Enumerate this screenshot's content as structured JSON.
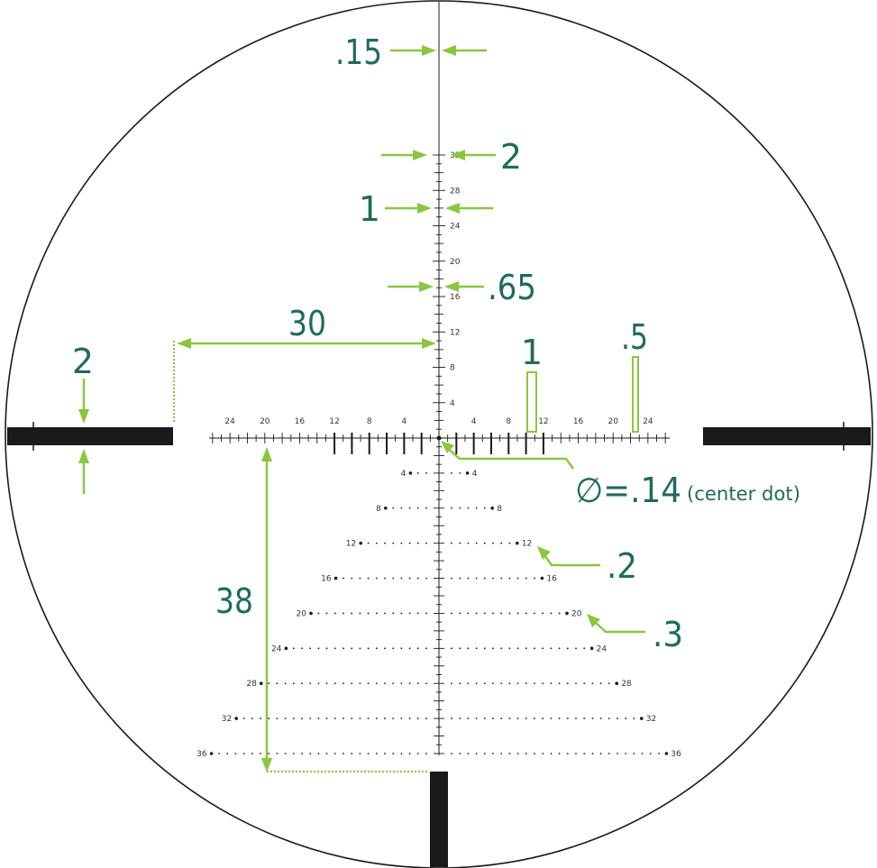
{
  "colors": {
    "reticle": "#1a1a1a",
    "annotation_arrow": "#8cc63f",
    "annotation_text": "#1f6b5c",
    "background": "#ffffff"
  },
  "vertical_scale_labels": [
    "4",
    "8",
    "12",
    "16",
    "20",
    "24",
    "28",
    "32"
  ],
  "horizontal_scale_labels": [
    "24",
    "20",
    "16",
    "12",
    "8",
    "4",
    "4",
    "8",
    "12",
    "16",
    "20",
    "24"
  ],
  "holdover_rows": [
    {
      "label": "4"
    },
    {
      "label": "8"
    },
    {
      "label": "12"
    },
    {
      "label": "16"
    },
    {
      "label": "20"
    },
    {
      "label": "24"
    },
    {
      "label": "28"
    },
    {
      "label": "32"
    },
    {
      "label": "36"
    }
  ],
  "dimensions": {
    "line_thickness_top": ".15",
    "top_width": "2",
    "upper_width": "1",
    "mid_width": ".65",
    "horizontal_offset": "30",
    "post_thickness": "2",
    "hash_1": "1",
    "hash_05": ".5",
    "center_dot_symbol": "∅=.14",
    "center_dot_note": "(center dot)",
    "dot_small": ".2",
    "dot_large": ".3",
    "vertical_drop": "38"
  }
}
